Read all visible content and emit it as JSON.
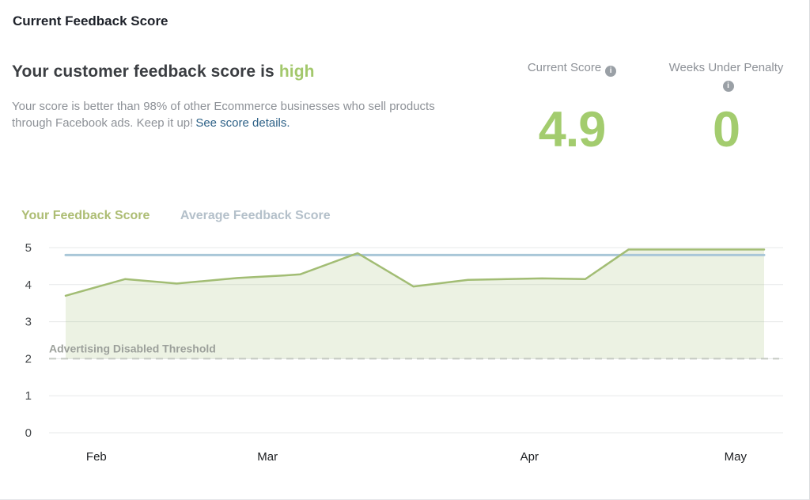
{
  "page": {
    "title": "Current Feedback Score"
  },
  "summary": {
    "headline_prefix": "Your customer feedback score is",
    "headline_status": "high",
    "description": "Your score is better than 98% of other Ecommerce businesses who sell products through Facebook ads. Keep it up!",
    "link_text": "See score details."
  },
  "stats": [
    {
      "label": "Current Score",
      "value": "4.9"
    },
    {
      "label": "Weeks Under Penalty",
      "value": "0"
    }
  ],
  "icons": {
    "info": "i"
  },
  "colors": {
    "score_green": "#a3cc6e",
    "status_green": "#a3c86c",
    "line_green": "#a2bd74",
    "line_blue": "#a9c7d8",
    "legend_green": "#adbd74",
    "legend_blue_gray": "#b4c0ca",
    "link_teal": "#2d6187",
    "threshold_gray": "#c5cac3"
  },
  "chart_data": {
    "type": "line",
    "title": "Customer feedback score over time",
    "x_tick_labels": [
      "Feb",
      "Mar",
      "Apr",
      "May"
    ],
    "x_tick_positions": [
      0.044,
      0.289,
      0.664,
      0.959
    ],
    "ylim": [
      0,
      5
    ],
    "y_ticks": [
      0,
      1,
      2,
      3,
      4,
      5
    ],
    "grid": true,
    "legend_position": "top-left",
    "series": [
      {
        "name": "Your Feedback Score",
        "color": "#a2bd74",
        "stroke_width": 2.5,
        "fill_to_threshold": true,
        "fill_color": "rgba(162,189,116,0.20)",
        "points": [
          [
            0.0,
            3.7
          ],
          [
            0.085,
            4.15
          ],
          [
            0.159,
            4.03
          ],
          [
            0.246,
            4.18
          ],
          [
            0.314,
            4.25
          ],
          [
            0.336,
            4.28
          ],
          [
            0.418,
            4.85
          ],
          [
            0.498,
            3.95
          ],
          [
            0.576,
            4.13
          ],
          [
            0.682,
            4.17
          ],
          [
            0.744,
            4.15
          ],
          [
            0.806,
            4.95
          ],
          [
            1.0,
            4.95
          ]
        ]
      },
      {
        "name": "Average Feedback Score",
        "color": "#a9c7d8",
        "stroke_width": 3,
        "fill_to_threshold": false,
        "points": [
          [
            0.0,
            4.8
          ],
          [
            1.0,
            4.8
          ]
        ]
      }
    ],
    "threshold": {
      "label": "Advertising Disabled Threshold",
      "value": 2,
      "color": "#c5cac3",
      "label_color": "#9ca09b"
    }
  }
}
